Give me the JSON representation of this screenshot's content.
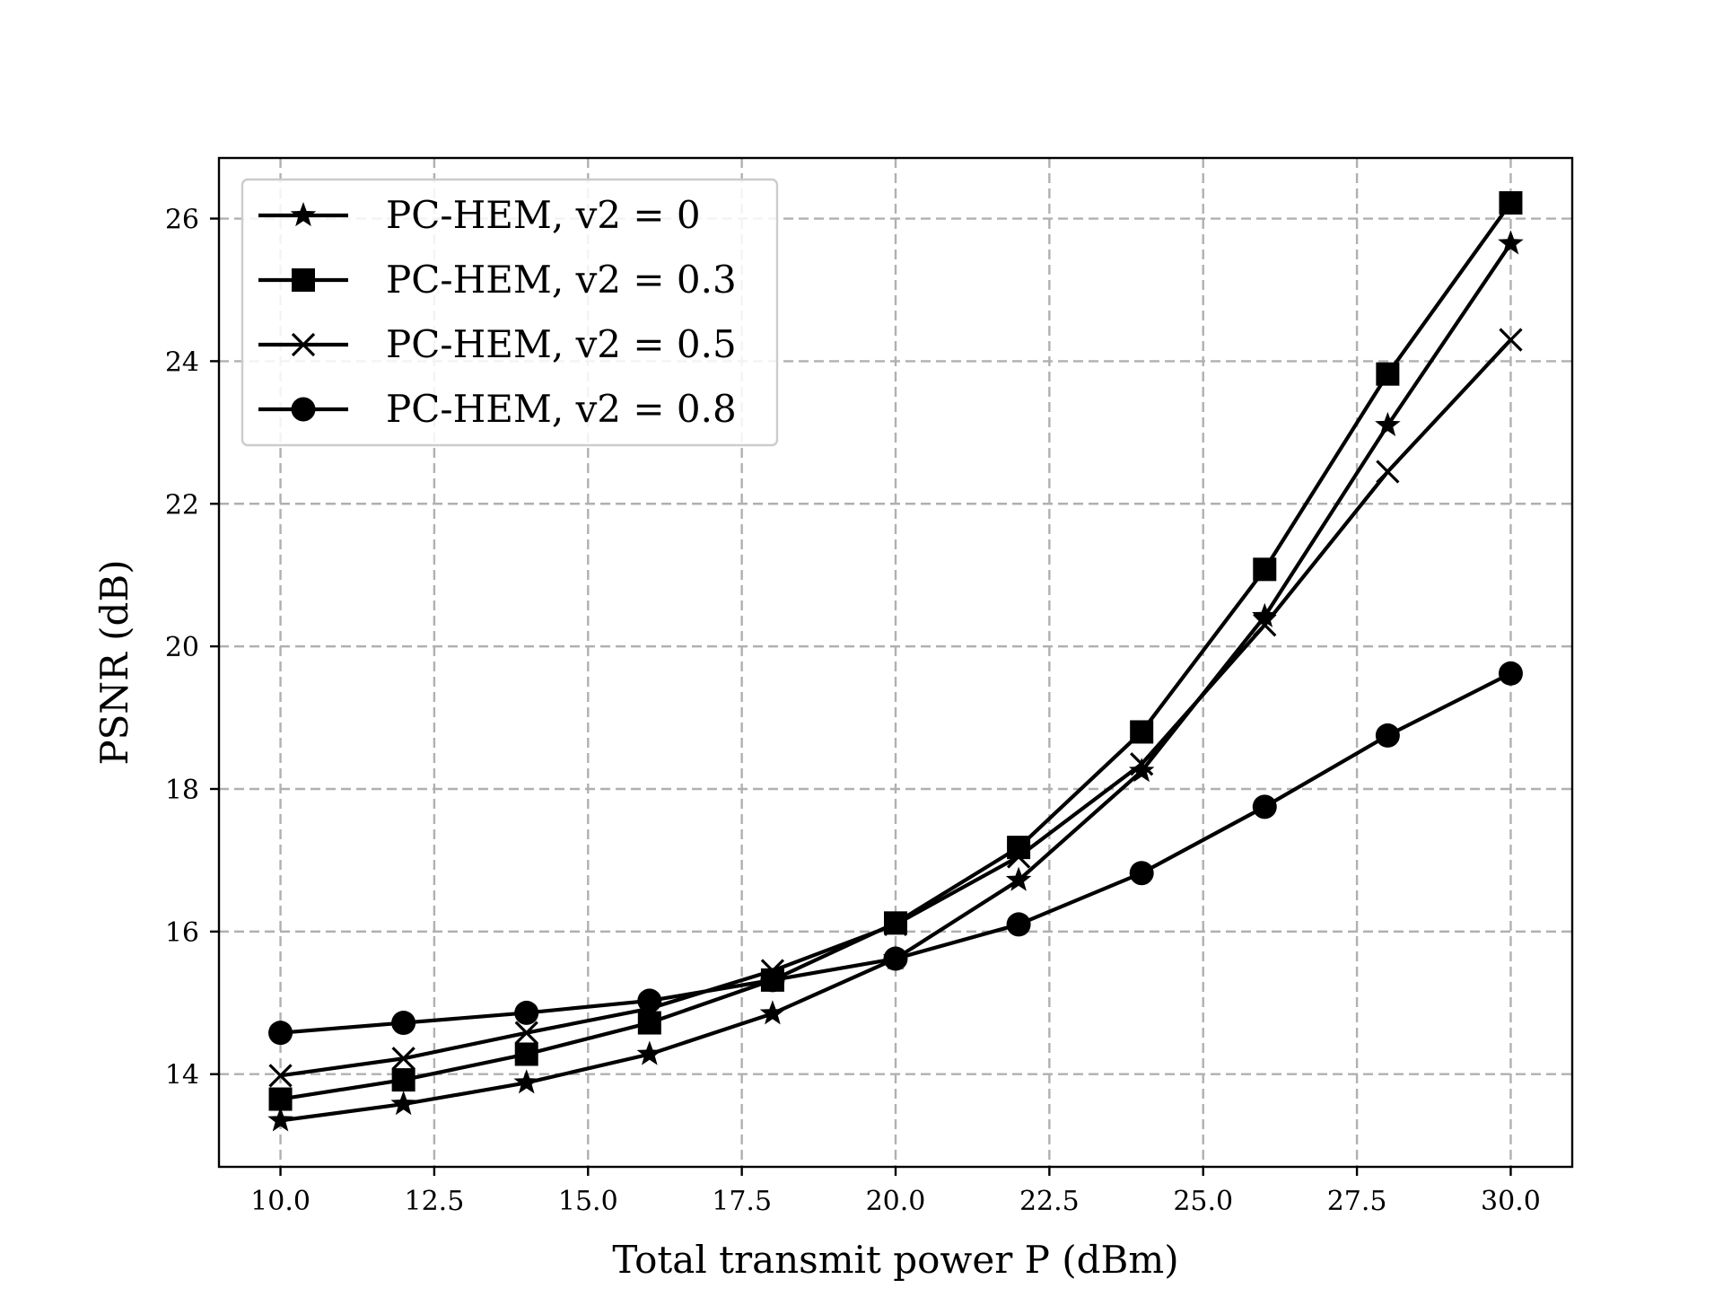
{
  "chart_data": {
    "type": "line",
    "title": "",
    "xlabel": "Total transmit power P (dBm)",
    "ylabel": "PSNR (dB)",
    "xlim": [
      9.0,
      31.0
    ],
    "ylim": [
      12.7,
      26.85
    ],
    "x_ticks": [
      10.0,
      12.5,
      15.0,
      17.5,
      20.0,
      22.5,
      25.0,
      27.5,
      30.0
    ],
    "x_tick_labels": [
      "10.0",
      "12.5",
      "15.0",
      "17.5",
      "20.0",
      "22.5",
      "25.0",
      "27.5",
      "30.0"
    ],
    "y_ticks": [
      14,
      16,
      18,
      20,
      22,
      24,
      26
    ],
    "y_tick_labels": [
      "14",
      "16",
      "18",
      "20",
      "22",
      "24",
      "26"
    ],
    "grid": true,
    "legend_position": "top-left",
    "x": [
      10,
      12,
      14,
      16,
      18,
      20,
      22,
      24,
      26,
      28,
      30
    ],
    "series": [
      {
        "name": "PC-HEM, v2 = 0",
        "marker": "star",
        "color": "#000000",
        "values": [
          13.35,
          13.58,
          13.88,
          14.28,
          14.85,
          15.62,
          16.72,
          18.25,
          20.42,
          23.1,
          25.65
        ]
      },
      {
        "name": "PC-HEM, v2 = 0.3",
        "marker": "square",
        "color": "#000000",
        "values": [
          13.65,
          13.92,
          14.28,
          14.72,
          15.32,
          16.12,
          17.18,
          18.8,
          21.08,
          23.82,
          26.22
        ]
      },
      {
        "name": "PC-HEM, v2 = 0.5",
        "marker": "x",
        "color": "#000000",
        "values": [
          13.98,
          14.22,
          14.58,
          14.92,
          15.45,
          16.1,
          17.05,
          18.35,
          20.3,
          22.45,
          24.3
        ]
      },
      {
        "name": "PC-HEM, v2 = 0.8",
        "marker": "circle",
        "color": "#000000",
        "values": [
          14.58,
          14.72,
          14.86,
          15.03,
          15.32,
          15.62,
          16.1,
          16.82,
          17.75,
          18.75,
          19.62
        ]
      }
    ]
  }
}
